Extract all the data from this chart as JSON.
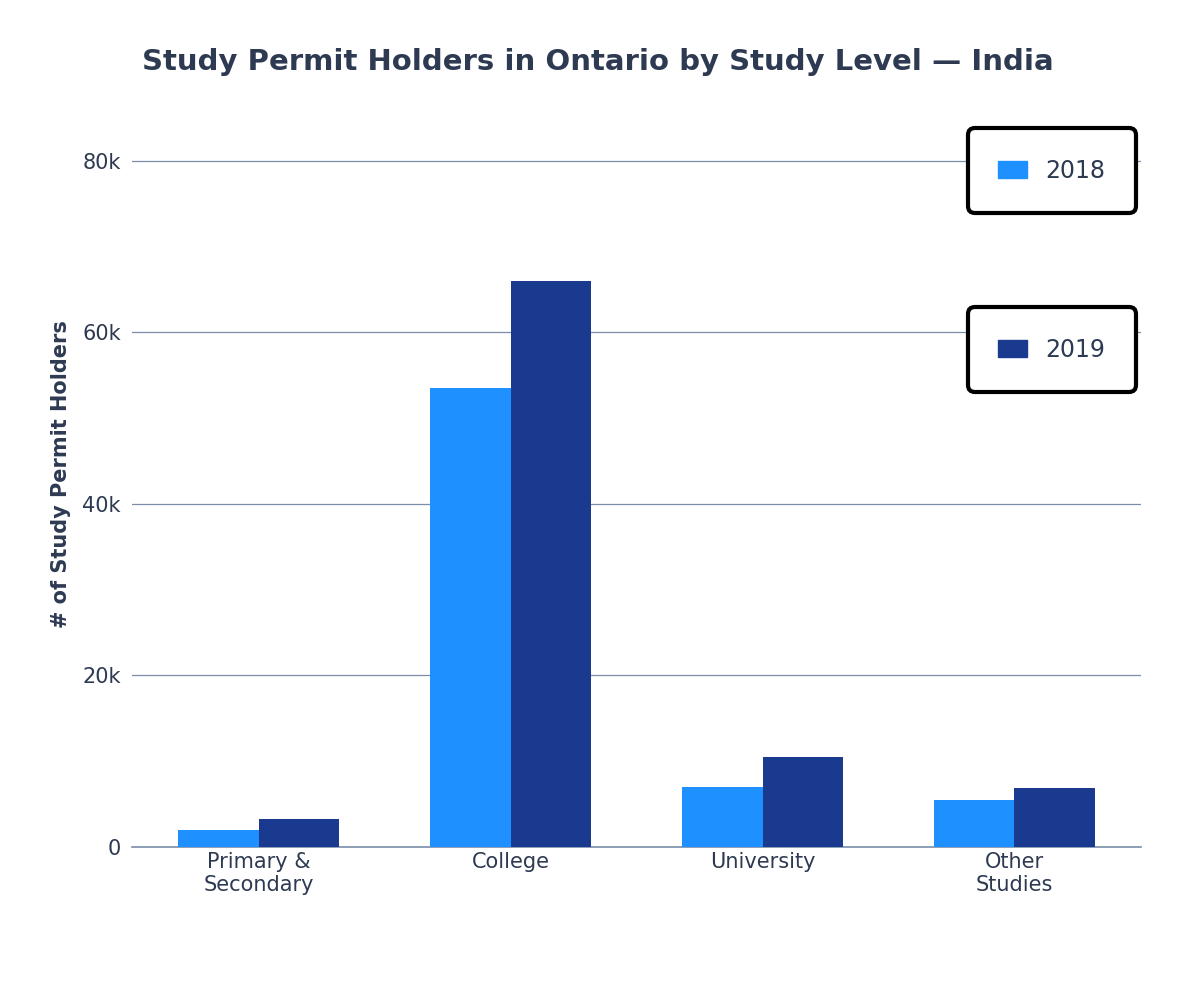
{
  "title": "Study Permit Holders in Ontario by Study Level — India",
  "ylabel": "# of Study Permit Holders",
  "categories": [
    "Primary &\nSecondary",
    "College",
    "University",
    "Other\nStudies"
  ],
  "values_2018": [
    2000,
    53500,
    7000,
    5500
  ],
  "values_2019": [
    3200,
    66000,
    10500,
    6800
  ],
  "color_2018": "#1e90ff",
  "color_2019": "#1a3a8f",
  "background_color": "#ffffff",
  "yticks": [
    0,
    20000,
    40000,
    60000,
    80000
  ],
  "ytick_labels": [
    "0",
    "20k",
    "40k",
    "60k",
    "80k"
  ],
  "ylim": [
    0,
    87000
  ],
  "grid_color": "#7a8eaa",
  "text_color": "#2d3a52",
  "title_fontsize": 21,
  "axis_label_fontsize": 15,
  "tick_fontsize": 15,
  "legend_fontsize": 17,
  "bar_width": 0.32
}
